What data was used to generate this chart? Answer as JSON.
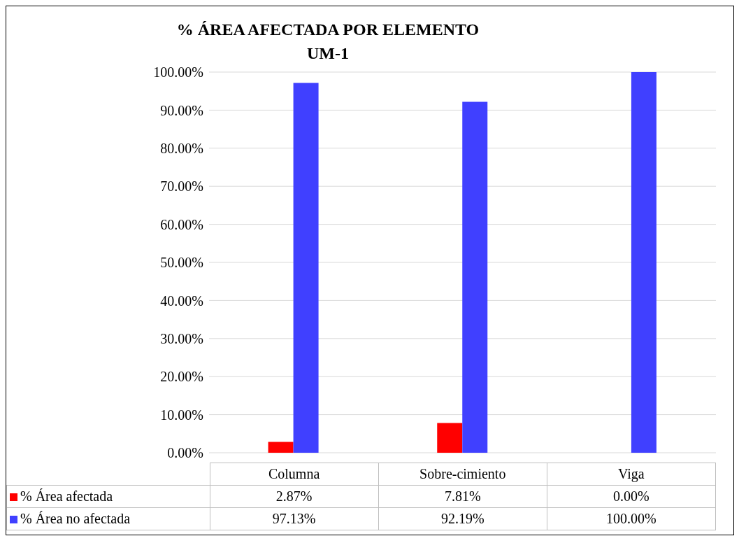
{
  "chart_data": {
    "type": "bar",
    "title": "% ÁREA AFECTADA POR ELEMENTO\nUM-1",
    "categories": [
      "Columna",
      "Sobre-cimiento",
      "Viga"
    ],
    "series": [
      {
        "name": "% Área afectada",
        "color": "#ff0000",
        "values": [
          2.87,
          7.81,
          0
        ],
        "value_labels": [
          "2.87%",
          "7.81%",
          "0.00%"
        ]
      },
      {
        "name": "% Área no afectada",
        "color": "#4040ff",
        "values": [
          97.13,
          92.19,
          100
        ],
        "value_labels": [
          "97.13%",
          "92.19%",
          "100.00%"
        ]
      }
    ],
    "ylim": [
      0,
      100
    ],
    "yticks": [
      {
        "value": 0,
        "label": "0.00%"
      },
      {
        "value": 10,
        "label": "10.00%"
      },
      {
        "value": 20,
        "label": "20.00%"
      },
      {
        "value": 30,
        "label": "30.00%"
      },
      {
        "value": 40,
        "label": "40.00%"
      },
      {
        "value": 50,
        "label": "50.00%"
      },
      {
        "value": 60,
        "label": "60.00%"
      },
      {
        "value": 70,
        "label": "70.00%"
      },
      {
        "value": 80,
        "label": "80.00%"
      },
      {
        "value": 90,
        "label": "90.00%"
      },
      {
        "value": 100,
        "label": "100.00%"
      }
    ],
    "grid": "y",
    "legend": "bottom"
  }
}
